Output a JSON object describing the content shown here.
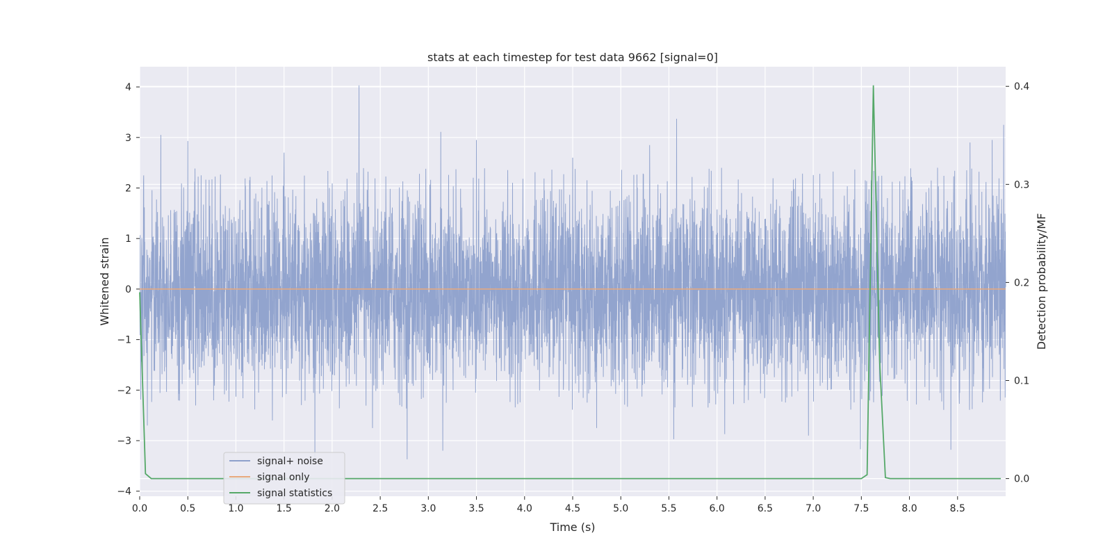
{
  "chart_data": {
    "type": "line",
    "title": "stats at each timestep for test data 9662 [signal=0]",
    "xlabel": "Time (s)",
    "ylabel": "Whitened strain",
    "y2label": "Detection probability/MF",
    "xlim": [
      0.0,
      9.0
    ],
    "ylim": [
      -4.1,
      4.4
    ],
    "y2lim": [
      -0.018,
      0.42
    ],
    "grid": true,
    "legend_position": "lower-left",
    "x_ticks": [
      "0.0",
      "0.5",
      "1.0",
      "1.5",
      "2.0",
      "2.5",
      "3.0",
      "3.5",
      "4.0",
      "4.5",
      "5.0",
      "5.5",
      "6.0",
      "6.5",
      "7.0",
      "7.5",
      "8.0",
      "8.5"
    ],
    "x_tick_values": [
      0.0,
      0.5,
      1.0,
      1.5,
      2.0,
      2.5,
      3.0,
      3.5,
      4.0,
      4.5,
      5.0,
      5.5,
      6.0,
      6.5,
      7.0,
      7.5,
      8.0,
      8.5
    ],
    "y_ticks": [
      "4",
      "3",
      "2",
      "1",
      "0",
      "−1",
      "−2",
      "−3",
      "−4"
    ],
    "y_tick_values": [
      4,
      3,
      2,
      1,
      0,
      -1,
      -2,
      -3,
      -4
    ],
    "y2_ticks": [
      "0.4",
      "0.3",
      "0.2",
      "0.1",
      "0.0"
    ],
    "y2_tick_values": [
      0.4,
      0.3,
      0.2,
      0.1,
      0.0
    ],
    "series": [
      {
        "name": "signal+ noise",
        "color": "#8da0cb",
        "axis": "left",
        "kind": "noise",
        "duration": 9.0,
        "spikes": [
          {
            "x": 0.22,
            "y": 3.05
          },
          {
            "x": 0.5,
            "y": 2.93
          },
          {
            "x": 0.08,
            "y": -2.7
          },
          {
            "x": 1.5,
            "y": 2.7
          },
          {
            "x": 2.28,
            "y": 4.03
          },
          {
            "x": 1.82,
            "y": -3.4
          },
          {
            "x": 2.78,
            "y": -3.37
          },
          {
            "x": 3.13,
            "y": 3.11
          },
          {
            "x": 3.15,
            "y": -3.2
          },
          {
            "x": 3.5,
            "y": 2.95
          },
          {
            "x": 5.58,
            "y": 3.37
          },
          {
            "x": 5.3,
            "y": 2.85
          },
          {
            "x": 5.55,
            "y": -2.97
          },
          {
            "x": 7.49,
            "y": -3.17
          },
          {
            "x": 8.43,
            "y": -3.18
          },
          {
            "x": 8.98,
            "y": 3.25
          },
          {
            "x": 6.08,
            "y": -2.87
          },
          {
            "x": 8.63,
            "y": 2.9
          },
          {
            "x": 4.5,
            "y": 2.6
          },
          {
            "x": 2.42,
            "y": -2.75
          },
          {
            "x": 4.75,
            "y": -2.75
          },
          {
            "x": 1.38,
            "y": -2.6
          },
          {
            "x": 6.95,
            "y": -2.9
          },
          {
            "x": 8.86,
            "y": 2.95
          }
        ]
      },
      {
        "name": "signal only",
        "color": "#e8a97c",
        "axis": "left",
        "x": [
          0.0,
          9.0
        ],
        "y": [
          0.0,
          0.0
        ]
      },
      {
        "name": "signal statistics",
        "color": "#55a868",
        "axis": "right",
        "x": [
          0.0,
          0.06,
          0.12,
          7.5,
          7.56,
          7.625,
          7.69,
          7.75,
          7.8,
          8.95
        ],
        "y": [
          0.19,
          0.005,
          0.0,
          0.0,
          0.004,
          0.401,
          0.12,
          0.001,
          0.0,
          0.0
        ]
      }
    ]
  }
}
